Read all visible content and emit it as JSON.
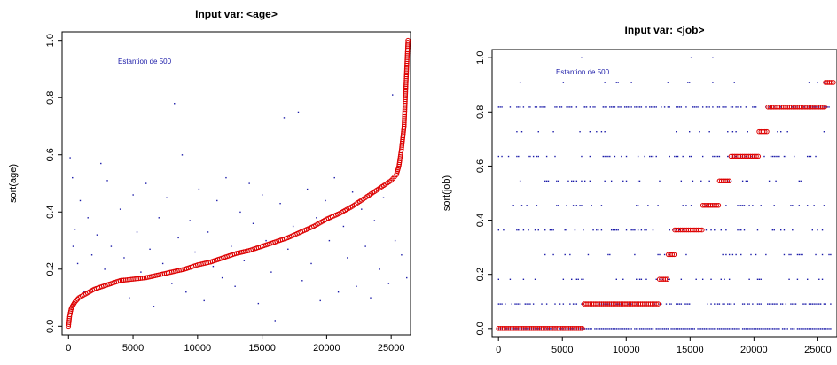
{
  "chart_data": [
    {
      "type": "scatter",
      "title": "Input var:  <age>",
      "xlabel": "",
      "ylabel": "sort(age)",
      "annotation": "Estantion de 500",
      "xlim": [
        -500,
        26500
      ],
      "ylim": [
        -0.03,
        1.03
      ],
      "xticks": [
        "0",
        "5000",
        "10000",
        "15000",
        "20000",
        "25000"
      ],
      "xtick_values": [
        0,
        5000,
        10000,
        15000,
        20000,
        25000
      ],
      "yticks": [
        "0.0",
        "0.2",
        "0.4",
        "0.6",
        "0.8",
        "1.0"
      ],
      "ytick_values": [
        0,
        0.2,
        0.4,
        0.6,
        0.8,
        1.0
      ],
      "grid": false,
      "series": [
        {
          "role": "sorted",
          "color": "#dd0000",
          "marker": "circle",
          "x": [
            0,
            100,
            200,
            300,
            500,
            800,
            1200,
            2000,
            3000,
            4000,
            5000,
            6000,
            7000,
            8000,
            9000,
            10000,
            11000,
            12000,
            13000,
            14000,
            15000,
            16000,
            17000,
            18000,
            19000,
            20000,
            21000,
            22000,
            23000,
            24000,
            25000,
            25400,
            25600,
            25800,
            26000,
            26100,
            26200,
            26300
          ],
          "y": [
            0.0,
            0.04,
            0.06,
            0.07,
            0.085,
            0.1,
            0.11,
            0.13,
            0.145,
            0.16,
            0.165,
            0.17,
            0.18,
            0.19,
            0.2,
            0.215,
            0.225,
            0.24,
            0.255,
            0.265,
            0.28,
            0.295,
            0.31,
            0.33,
            0.35,
            0.375,
            0.395,
            0.42,
            0.45,
            0.48,
            0.51,
            0.53,
            0.56,
            0.62,
            0.7,
            0.8,
            0.9,
            1.0
          ]
        },
        {
          "role": "unsorted-sample",
          "color": "#1a1aa8",
          "marker": "point",
          "x": [
            120,
            300,
            350,
            500,
            700,
            900,
            1200,
            1500,
            1800,
            2200,
            2500,
            2800,
            3000,
            3300,
            3600,
            4000,
            4300,
            4700,
            5000,
            5300,
            5600,
            6000,
            6300,
            6600,
            7000,
            7300,
            7600,
            8000,
            8200,
            8500,
            8800,
            9100,
            9400,
            9800,
            10100,
            10500,
            10800,
            11200,
            11500,
            11900,
            12200,
            12600,
            12900,
            13300,
            13600,
            14000,
            14300,
            14700,
            15000,
            15300,
            15700,
            16000,
            16400,
            16700,
            17000,
            17400,
            17800,
            18100,
            18500,
            18800,
            19200,
            19500,
            19900,
            20200,
            20600,
            20900,
            21300,
            21600,
            22000,
            22300,
            22700,
            23000,
            23400,
            23700,
            24100,
            24400,
            24800,
            25100,
            25300,
            25800,
            26200
          ],
          "y": [
            0.59,
            0.52,
            0.28,
            0.34,
            0.22,
            0.44,
            0.12,
            0.38,
            0.25,
            0.32,
            0.57,
            0.2,
            0.51,
            0.28,
            0.16,
            0.41,
            0.24,
            0.1,
            0.46,
            0.33,
            0.19,
            0.5,
            0.27,
            0.07,
            0.38,
            0.22,
            0.45,
            0.15,
            0.78,
            0.31,
            0.6,
            0.12,
            0.37,
            0.26,
            0.48,
            0.09,
            0.33,
            0.21,
            0.44,
            0.17,
            0.52,
            0.28,
            0.14,
            0.4,
            0.23,
            0.5,
            0.36,
            0.08,
            0.46,
            0.3,
            0.19,
            0.02,
            0.43,
            0.73,
            0.27,
            0.35,
            0.75,
            0.16,
            0.48,
            0.22,
            0.38,
            0.09,
            0.44,
            0.3,
            0.52,
            0.12,
            0.35,
            0.24,
            0.47,
            0.14,
            0.41,
            0.28,
            0.1,
            0.37,
            0.2,
            0.45,
            0.15,
            0.81,
            0.3,
            0.25,
            0.17
          ]
        }
      ]
    },
    {
      "type": "scatter",
      "title": "Input var:  <job>",
      "xlabel": "",
      "ylabel": "sort(job)",
      "annotation": "Estantion de 500",
      "xlim": [
        -500,
        26500
      ],
      "ylim": [
        -0.03,
        1.03
      ],
      "xticks": [
        "0",
        "5000",
        "10000",
        "15000",
        "20000",
        "25000"
      ],
      "xtick_values": [
        0,
        5000,
        10000,
        15000,
        20000,
        25000
      ],
      "yticks": [
        "0.0",
        "0.2",
        "0.4",
        "0.6",
        "0.8",
        "1.0"
      ],
      "ytick_values": [
        0,
        0.2,
        0.4,
        0.6,
        0.8,
        1.0
      ],
      "grid": false,
      "series": [
        {
          "role": "sorted",
          "color": "#dd0000",
          "marker": "circle",
          "steps": [
            {
              "x0": 0,
              "x1": 6700,
              "y": 0.0
            },
            {
              "x0": 6700,
              "x1": 12600,
              "y": 0.091
            },
            {
              "x0": 12600,
              "x1": 13300,
              "y": 0.182
            },
            {
              "x0": 13300,
              "x1": 13800,
              "y": 0.273
            },
            {
              "x0": 13800,
              "x1": 16000,
              "y": 0.364
            },
            {
              "x0": 16000,
              "x1": 17300,
              "y": 0.455
            },
            {
              "x0": 17300,
              "x1": 18200,
              "y": 0.545
            },
            {
              "x0": 18200,
              "x1": 20400,
              "y": 0.636
            },
            {
              "x0": 20400,
              "x1": 21100,
              "y": 0.727
            },
            {
              "x0": 21100,
              "x1": 25600,
              "y": 0.818
            },
            {
              "x0": 25600,
              "x1": 26300,
              "y": 0.909
            },
            {
              "x0": 26300,
              "x1": 26800,
              "y": 1.0
            }
          ]
        },
        {
          "role": "unsorted-sample",
          "color": "#1a1aa8",
          "marker": "point",
          "levels": [
            0.0,
            0.091,
            0.182,
            0.273,
            0.364,
            0.455,
            0.545,
            0.636,
            0.727,
            0.818,
            0.909,
            1.0
          ],
          "level_density": [
            0.9,
            0.55,
            0.2,
            0.12,
            0.3,
            0.18,
            0.15,
            0.3,
            0.08,
            0.55,
            0.06,
            0.02
          ]
        }
      ]
    }
  ]
}
